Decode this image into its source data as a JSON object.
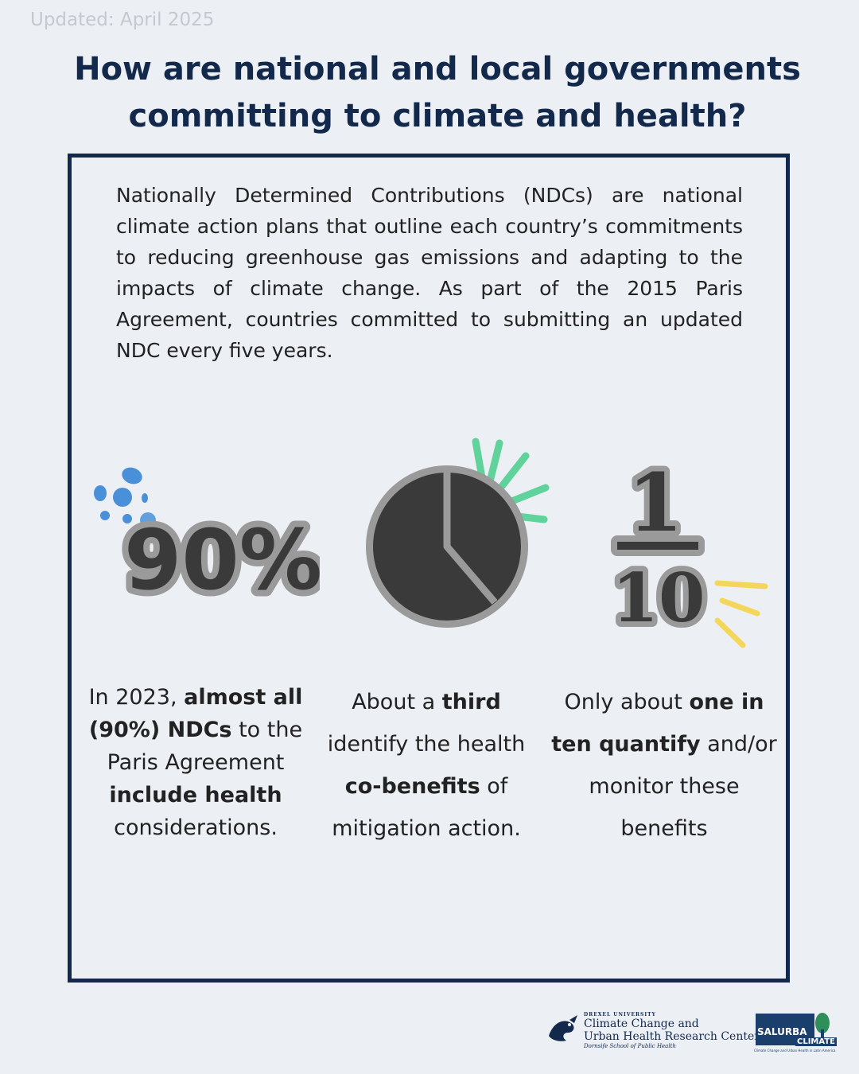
{
  "updated": "Updated: April 2025",
  "title": {
    "line1": "How are national and local governments",
    "line2": "committing to climate and health?"
  },
  "intro": "Nationally Determined Contributions (NDCs) are national climate action plans that outline each country’s commitments to reducing greenhouse gas emissions and adapting to the impacts of climate change. As part of the 2015 Paris Agreement, countries committed to submitting an updated NDC every five years.",
  "icons": {
    "percent": "90%",
    "fraction_num": "1",
    "fraction_den": "10"
  },
  "stats": [
    {
      "p1": "In 2023, ",
      "b1": "almost all (90%) NDCs",
      "p2": " to the Paris Agreement ",
      "b2": "include health",
      "p3": " considerations."
    },
    {
      "p1": "About a ",
      "b1": "third",
      "p2": " identify the health ",
      "b2": "co-benefits",
      "p3": " of mitigation action."
    },
    {
      "p1": "Only about ",
      "b1": "one in ten quantify",
      "p2": " and/or monitor these benefits",
      "b2": "",
      "p3": ""
    }
  ],
  "logos": {
    "drexel_small": "DREXEL UNIVERSITY",
    "drexel_line1": "Climate Change and",
    "drexel_line2": "Urban Health Research Center",
    "drexel_line3": "Dornsife School of Public Health",
    "salurba_1": "SALURBA",
    "salurba_2": "CLIMATE",
    "salurba_3": "Climate Change and Urban Health in Latin America"
  },
  "colors": {
    "navy": "#13294b",
    "blue_dots": "#4a90d9",
    "green_rays": "#5fd39b",
    "yellow_rays": "#f4d75a",
    "dark_gray": "#3a3a3a"
  }
}
